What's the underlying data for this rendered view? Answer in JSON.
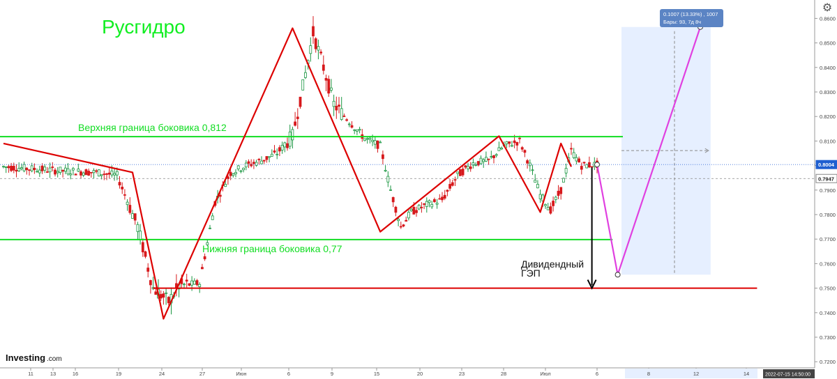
{
  "title": "Русгидро",
  "brand": {
    "name": "Investing",
    "suffix": ".com"
  },
  "timestamp": "2022-07-15 14:50:00",
  "measure_tooltip": {
    "line1": "0.1007 (13.33%) , 1007",
    "line2": "Бары: 93, 7д 8ч"
  },
  "chart_data": {
    "type": "candlestick",
    "ylim": [
      0.7175,
      0.8675
    ],
    "y_ticks": [
      "0.7200",
      "0.7300",
      "0.7400",
      "0.7500",
      "0.7600",
      "0.7700",
      "0.7800",
      "0.7900",
      "0.8000",
      "0.8100",
      "0.8200",
      "0.8300",
      "0.8400",
      "0.8500",
      "0.8600"
    ],
    "x_ticks": [
      "11",
      "13",
      "16",
      "19",
      "24",
      "27",
      "Июн",
      "6",
      "9",
      "15",
      "20",
      "23",
      "28",
      "Июл",
      "6",
      "8",
      "12",
      "14"
    ],
    "last_price": "0.8004",
    "ref_price": "0.7947",
    "price_path": [
      {
        "bar": 0,
        "price": 0.7995
      },
      {
        "bar": 10,
        "price": 0.798
      },
      {
        "bar": 18,
        "price": 0.7972
      },
      {
        "bar": 22,
        "price": 0.796
      },
      {
        "bar": 26,
        "price": 0.775
      },
      {
        "bar": 29,
        "price": 0.75
      },
      {
        "bar": 32,
        "price": 0.7445
      },
      {
        "bar": 34,
        "price": 0.751
      },
      {
        "bar": 38,
        "price": 0.752
      },
      {
        "bar": 41,
        "price": 0.785
      },
      {
        "bar": 44,
        "price": 0.797
      },
      {
        "bar": 47,
        "price": 0.8
      },
      {
        "bar": 50,
        "price": 0.802
      },
      {
        "bar": 53,
        "price": 0.805
      },
      {
        "bar": 56,
        "price": 0.812
      },
      {
        "bar": 58,
        "price": 0.832
      },
      {
        "bar": 60,
        "price": 0.854
      },
      {
        "bar": 62,
        "price": 0.84
      },
      {
        "bar": 64,
        "price": 0.825
      },
      {
        "bar": 67,
        "price": 0.818
      },
      {
        "bar": 70,
        "price": 0.811
      },
      {
        "bar": 73,
        "price": 0.808
      },
      {
        "bar": 75,
        "price": 0.79
      },
      {
        "bar": 77,
        "price": 0.775
      },
      {
        "bar": 79,
        "price": 0.781
      },
      {
        "bar": 82,
        "price": 0.784
      },
      {
        "bar": 85,
        "price": 0.786
      },
      {
        "bar": 88,
        "price": 0.796
      },
      {
        "bar": 91,
        "price": 0.801
      },
      {
        "bar": 94,
        "price": 0.802
      },
      {
        "bar": 97,
        "price": 0.808
      },
      {
        "bar": 100,
        "price": 0.81
      },
      {
        "bar": 102,
        "price": 0.8
      },
      {
        "bar": 104,
        "price": 0.788
      },
      {
        "bar": 106,
        "price": 0.782
      },
      {
        "bar": 108,
        "price": 0.79
      },
      {
        "bar": 110,
        "price": 0.806
      },
      {
        "bar": 112,
        "price": 0.8
      },
      {
        "bar": 115,
        "price": 0.8004
      }
    ],
    "horizontal_levels": [
      {
        "label": "Верхняя граница боковика 0,812",
        "price": 0.8118,
        "color": "#11dd22"
      },
      {
        "label": "Нижняя граница боковика 0,77",
        "price": 0.7698,
        "color": "#11dd22"
      },
      {
        "label": "",
        "price": 0.75,
        "color": "#dd0000"
      }
    ],
    "pattern_line": [
      {
        "bar": 0,
        "price": 0.809
      },
      {
        "bar": 25,
        "price": 0.7972
      },
      {
        "bar": 31,
        "price": 0.7375
      },
      {
        "bar": 56,
        "price": 0.856
      },
      {
        "bar": 73,
        "price": 0.773
      },
      {
        "bar": 96,
        "price": 0.812
      },
      {
        "bar": 104,
        "price": 0.781
      },
      {
        "bar": 108,
        "price": 0.809
      },
      {
        "bar": 110,
        "price": 0.7995
      }
    ],
    "projection": [
      {
        "bar": 115,
        "price": 0.8004
      },
      {
        "bar": 119,
        "price": 0.7555
      },
      {
        "bar": 135,
        "price": 0.8565
      }
    ],
    "annotation_gap": {
      "line1": "Дивидендный",
      "line2": "ГЭП",
      "from_price": 0.8004,
      "to_price": 0.75
    },
    "colors": {
      "up": "#1a9641",
      "down": "#d7191c",
      "pattern": "#dd0000",
      "projection": "#e040e0",
      "band": "#11dd22",
      "measure": "#e6efff",
      "axis": "#444444"
    }
  }
}
